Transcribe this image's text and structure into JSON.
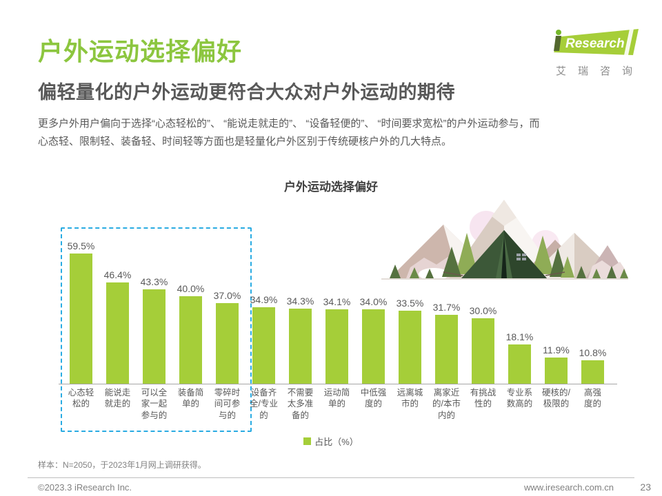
{
  "header": {
    "title": "户外运动选择偏好",
    "subtitle": "偏轻量化的户外运动更符合大众对户外运动的期待",
    "body_lines": [
      "更多户外用户偏向于选择“心态轻松的”、 “能说走就走的”、 “设备轻便的”、 “时间要求宽松”的户外运动参与，而",
      "心态轻、限制轻、装备轻、时间轻等方面也是轻量化户外区别于传统硬核户外的几大特点。"
    ]
  },
  "logo": {
    "brand_i": "i",
    "brand_name": "Research",
    "brand_cn": "艾瑞咨询"
  },
  "chart_data": {
    "type": "bar",
    "title": "户外运动选择偏好",
    "categories": [
      "心态轻松的",
      "能说走就走的",
      "可以全家一起参与的",
      "装备简单的",
      "零碎时间可参与的",
      "设备齐全/专业的",
      "不需要太多准备的",
      "运动简单的",
      "中低强度的",
      "远离城市的",
      "离家近的/本市内的",
      "有挑战性的",
      "专业系数高的",
      "硬核的/极限的",
      "高强度的"
    ],
    "values": [
      59.5,
      46.4,
      43.3,
      40.0,
      37.0,
      34.9,
      34.3,
      34.1,
      34.0,
      33.5,
      31.7,
      30.0,
      18.1,
      11.9,
      10.8
    ],
    "value_labels": [
      "59.5%",
      "46.4%",
      "43.3%",
      "40.0%",
      "37.0%",
      "34.9%",
      "34.3%",
      "34.1%",
      "34.0%",
      "33.5%",
      "31.7%",
      "30.0%",
      "18.1%",
      "11.9%",
      "10.8%"
    ],
    "tick_labels": [
      "心态轻\n松的",
      "能说走\n就走的",
      "可以全\n家一起\n参与的",
      "装备简\n单的",
      "零碎时\n间可参\n与的",
      "设备齐\n全/专业\n的",
      "不需要\n太多准\n备的",
      "运动简\n单的",
      "中低强\n度的",
      "远离城\n市的",
      "离家近\n的/本市\n内的",
      "有挑战\n性的",
      "专业系\n数高的",
      "硬核的/\n极限的",
      "高强\n度的"
    ],
    "legend": "占比（%）",
    "ylim": [
      0,
      65
    ],
    "grid": false,
    "legend_position": "bottom-center",
    "bar_color": "#A5CE39",
    "highlight": {
      "count": 5,
      "box_color": "#29ABE2"
    }
  },
  "footnote": "样本：N=2050，于2023年1月网上调研获得。",
  "footer": {
    "copyright": "©2023.3 iResearch Inc.",
    "website": "www.iresearch.com.cn",
    "page_number": "23"
  }
}
